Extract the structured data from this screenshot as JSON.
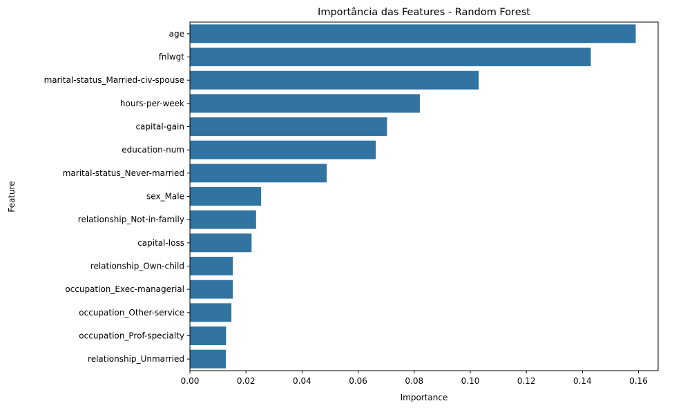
{
  "chart_data": {
    "type": "bar",
    "orientation": "horizontal",
    "title": "Importância das Features - Random Forest",
    "xlabel": "Importance",
    "ylabel": "Feature",
    "xlim": [
      0,
      0.167
    ],
    "xticks": [
      0.0,
      0.02,
      0.04,
      0.06,
      0.08,
      0.1,
      0.12,
      0.14,
      0.16
    ],
    "xtick_labels": [
      "0.00",
      "0.02",
      "0.04",
      "0.06",
      "0.08",
      "0.10",
      "0.12",
      "0.14",
      "0.16"
    ],
    "grid": false,
    "bar_color": "#3274a1",
    "categories": [
      "age",
      "fnlwgt",
      "marital-status_Married-civ-spouse",
      "hours-per-week",
      "capital-gain",
      "education-num",
      "marital-status_Never-married",
      "sex_Male",
      "relationship_Not-in-family",
      "capital-loss",
      "relationship_Own-child",
      "occupation_Exec-managerial",
      "occupation_Other-service",
      "occupation_Prof-specialty",
      "relationship_Unmarried"
    ],
    "values": [
      0.159,
      0.143,
      0.103,
      0.082,
      0.0703,
      0.0663,
      0.0488,
      0.0254,
      0.0236,
      0.022,
      0.0153,
      0.0153,
      0.0148,
      0.0129,
      0.0128
    ]
  }
}
